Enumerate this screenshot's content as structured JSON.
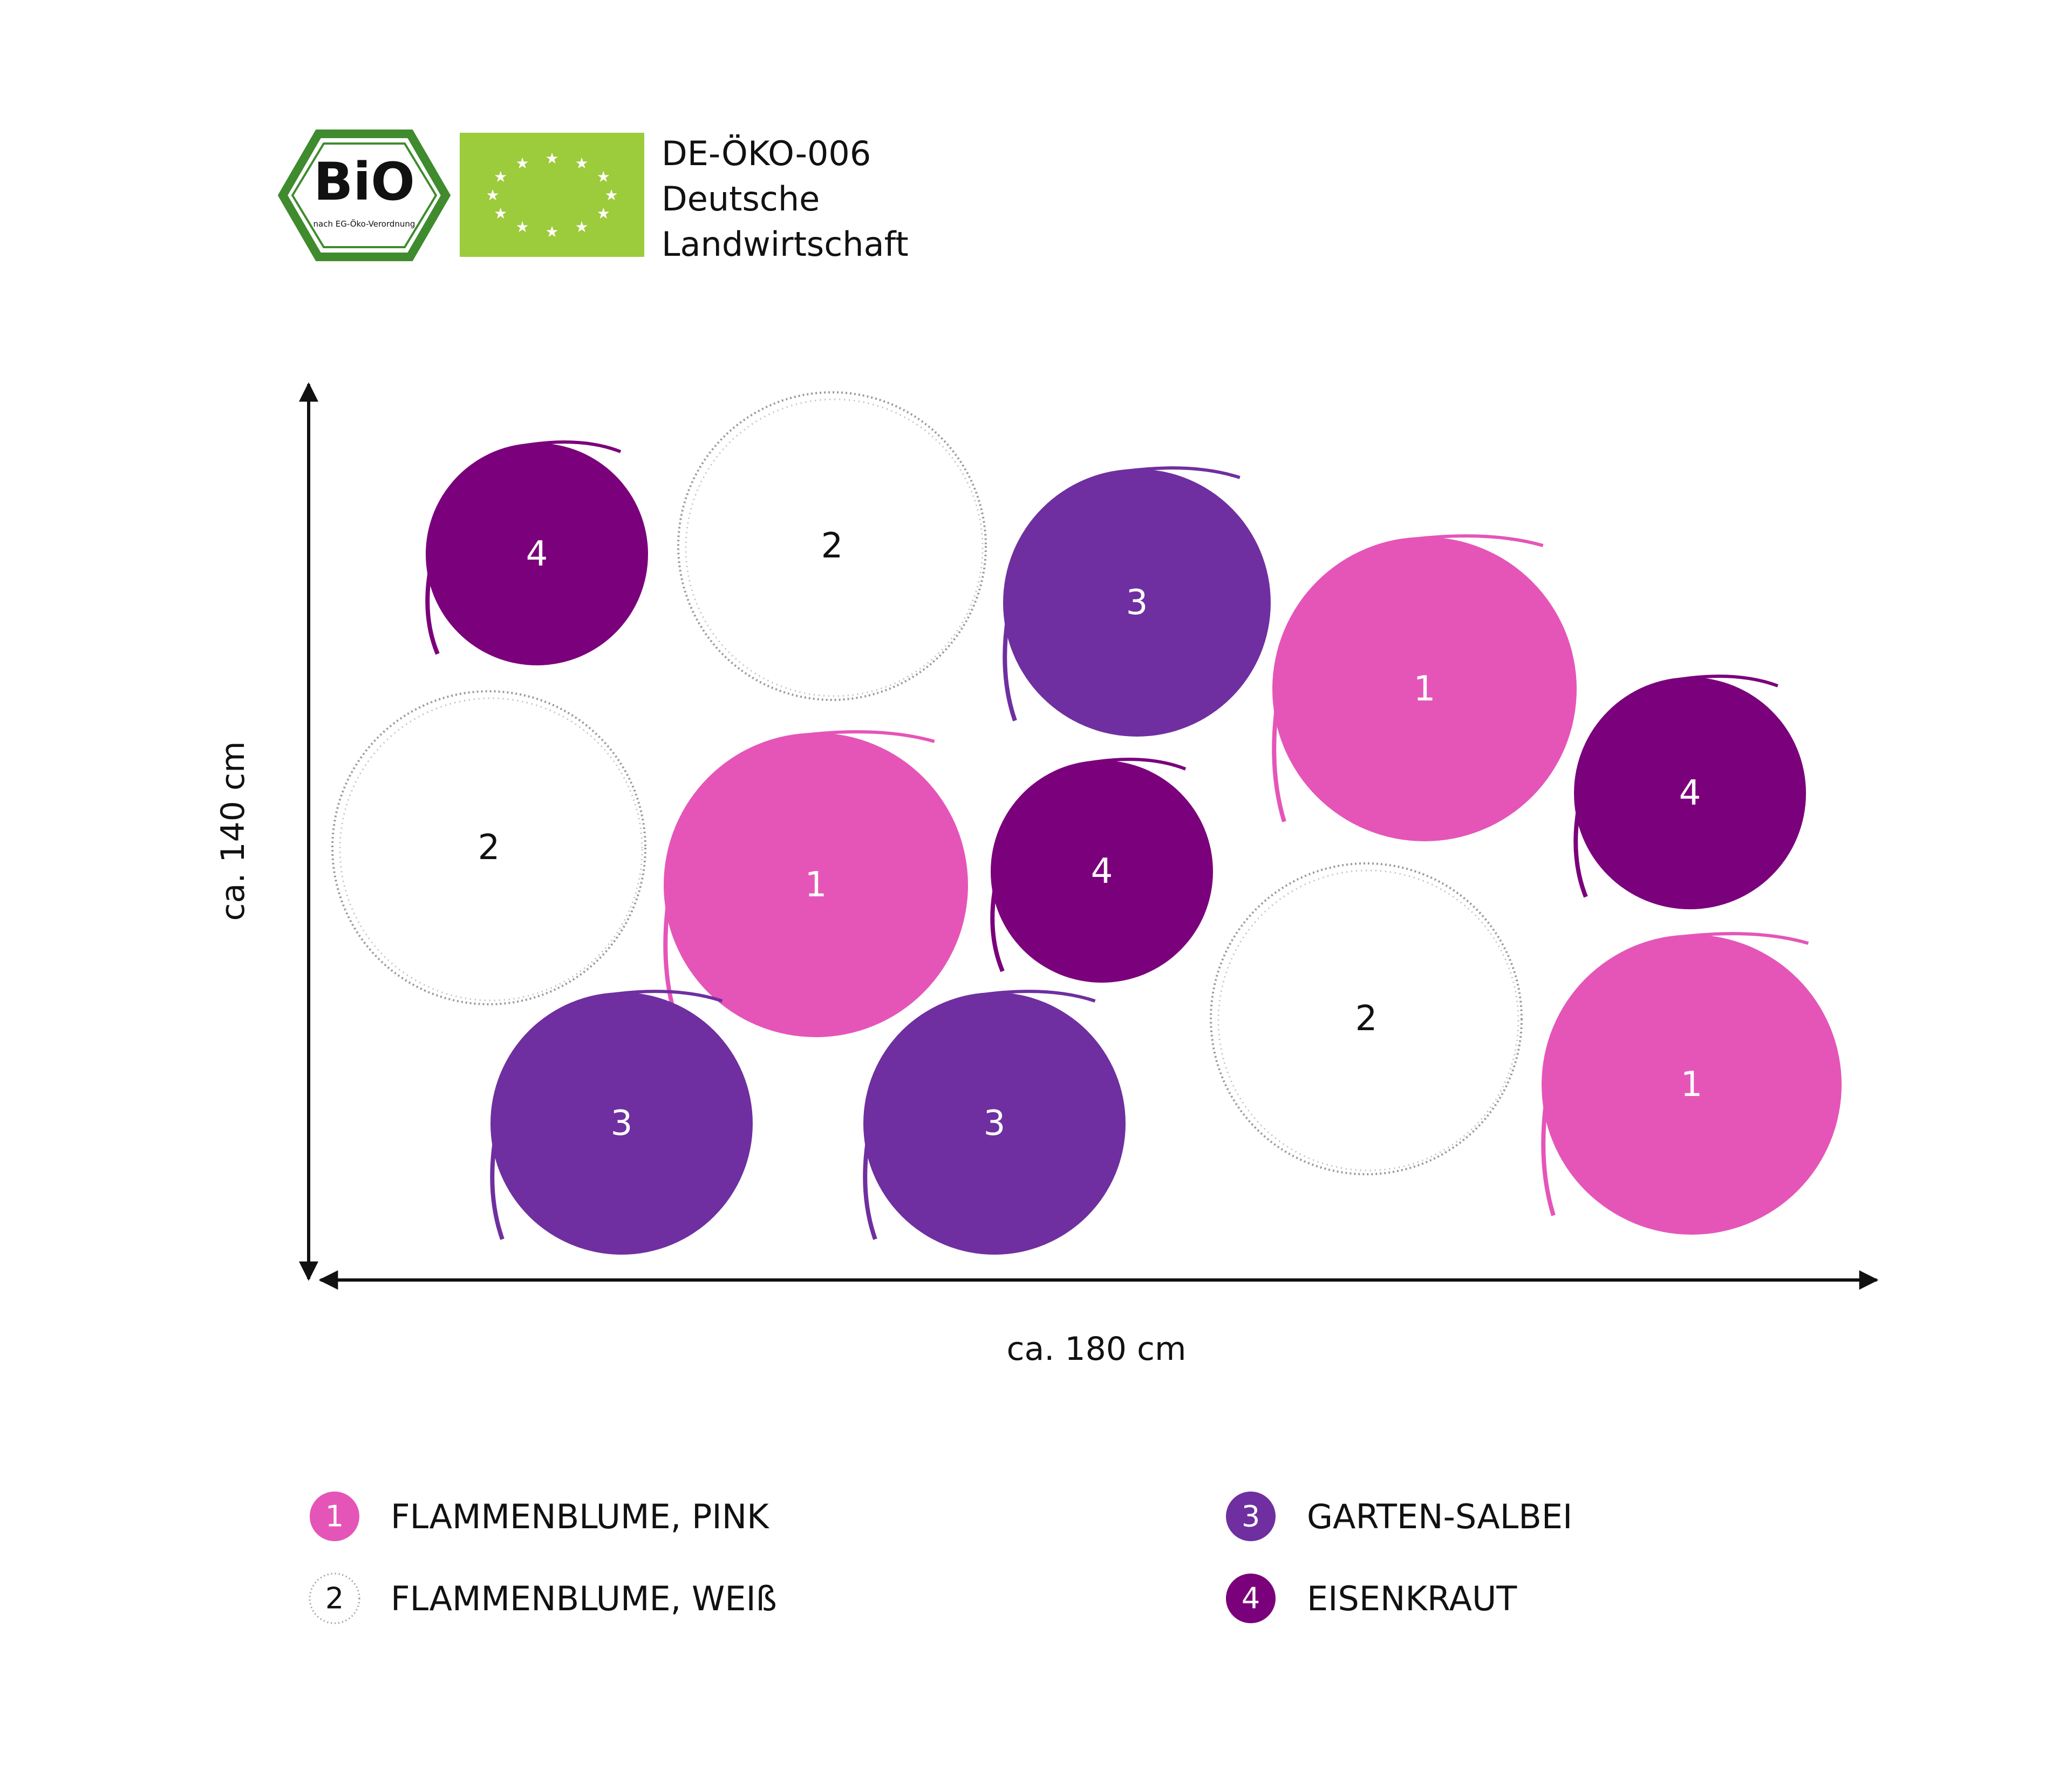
{
  "certification": {
    "bio_logo_text": "BiO",
    "bio_logo_subtext": "nach EG-Öko-Verordnung",
    "code_line": "DE-ÖKO-006",
    "line2": "Deutsche",
    "line3": "Landwirtschaft",
    "eu_leaf_color": "#9ccb3b",
    "bio_logo_color": "#3f8b2e"
  },
  "dimensions": {
    "width_label": "ca. 180 cm",
    "height_label": "ca. 140 cm"
  },
  "colors": {
    "1": "#e555b8",
    "2": "#ffffff",
    "3": "#6f2fa0",
    "4": "#7b007b"
  },
  "plants": [
    {
      "type": "4",
      "label": "4"
    },
    {
      "type": "2",
      "label": "2"
    },
    {
      "type": "3",
      "label": "3"
    },
    {
      "type": "1",
      "label": "1"
    },
    {
      "type": "4",
      "label": "4"
    },
    {
      "type": "2",
      "label": "2"
    },
    {
      "type": "1",
      "label": "1"
    },
    {
      "type": "4",
      "label": "4"
    },
    {
      "type": "2",
      "label": "2"
    },
    {
      "type": "3",
      "label": "3"
    },
    {
      "type": "3",
      "label": "3"
    },
    {
      "type": "1",
      "label": "1"
    }
  ],
  "legend": [
    {
      "type": "1",
      "number": "1",
      "label": "FLAMMENBLUME, PINK"
    },
    {
      "type": "2",
      "number": "2",
      "label": "FLAMMENBLUME, WEIß"
    },
    {
      "type": "3",
      "number": "3",
      "label": "GARTEN-SALBEI"
    },
    {
      "type": "4",
      "number": "4",
      "label": "EISENKRAUT"
    }
  ]
}
